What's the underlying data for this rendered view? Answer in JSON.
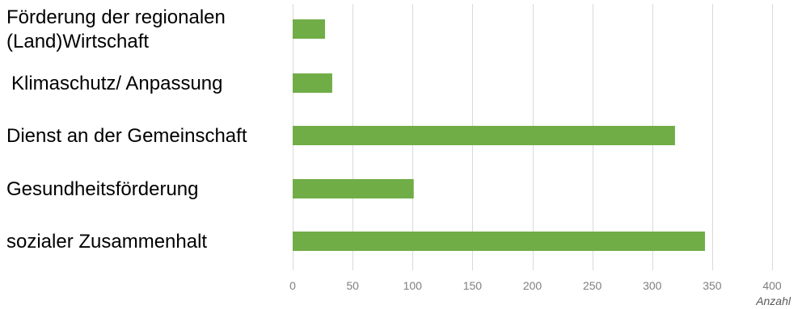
{
  "chart_data": {
    "type": "bar",
    "orientation": "horizontal",
    "categories": [
      [
        "Förderung der regionalen",
        "(Land)Wirtschaft"
      ],
      [
        "Klimaschutz/ Anpassung"
      ],
      [
        "Dienst an der Gemeinschaft"
      ],
      [
        "Gesundheitsförderung"
      ],
      [
        "sozialer Zusammenhalt"
      ]
    ],
    "values": [
      27,
      33,
      319,
      101,
      344
    ],
    "xlabel": "Anzahl",
    "xlim": [
      0,
      400
    ],
    "xticks": [
      0,
      50,
      100,
      150,
      200,
      250,
      300,
      350,
      400
    ],
    "grid": "vertical",
    "bar_color": "#70ad47"
  }
}
